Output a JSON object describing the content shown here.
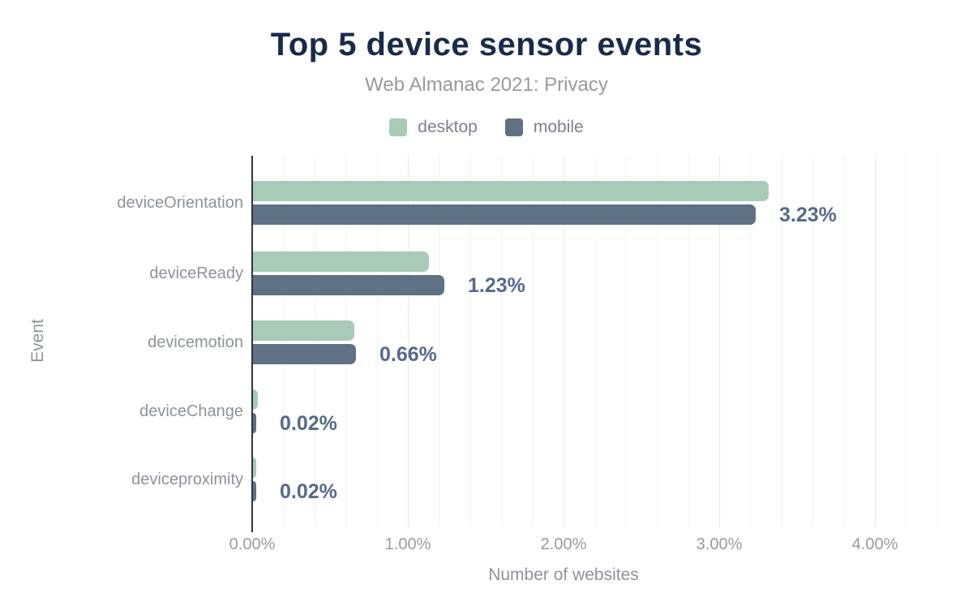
{
  "chart_data": {
    "type": "bar",
    "orientation": "horizontal",
    "title": "Top 5 device sensor events",
    "subtitle": "Web Almanac 2021: Privacy",
    "categories": [
      "deviceOrientation",
      "deviceReady",
      "devicemotion",
      "deviceChange",
      "deviceproximity"
    ],
    "series": [
      {
        "name": "desktop",
        "color": "#a8cbb8",
        "values": [
          3.31,
          1.13,
          0.65,
          0.03,
          0.02
        ]
      },
      {
        "name": "mobile",
        "color": "#5e7185",
        "values": [
          3.23,
          1.23,
          0.66,
          0.02,
          0.02
        ]
      }
    ],
    "bar_labels": [
      "3.23%",
      "1.23%",
      "0.66%",
      "0.02%",
      "0.02%"
    ],
    "bar_labels_series": "mobile",
    "xlabel": "Number of websites",
    "ylabel": "Event",
    "xlim": [
      0,
      4.4
    ],
    "x_ticks": [
      0,
      1,
      2,
      3,
      4
    ],
    "x_tick_labels": [
      "0.00%",
      "1.00%",
      "2.00%",
      "3.00%",
      "4.00%"
    ],
    "grid": "vertical, minor every 0.2%, major every 1.0%",
    "legend_position": "top"
  },
  "colors": {
    "title": "#1a2b49",
    "subtitle": "#9a9a9a",
    "axis_text": "#8d929b",
    "value_label": "#56698c",
    "desktop": "#a8cbb8",
    "mobile": "#5e7185",
    "axis_line": "#33363d",
    "grid_minor": "#f2f2f2",
    "grid_major": "#e8e8e8",
    "background": "#ffffff"
  }
}
